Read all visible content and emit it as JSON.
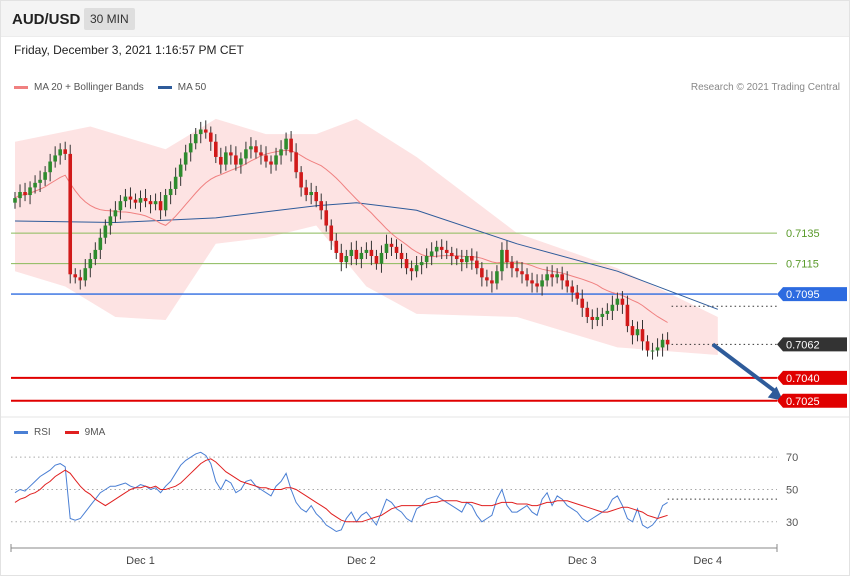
{
  "header": {
    "symbol": "AUD/USD",
    "timeframe": "30 MIN",
    "datetime": "Friday, December 3, 2021 1:16:57 PM CET"
  },
  "legend": {
    "main": [
      {
        "label": "MA 20 + Bollinger Bands",
        "color": "#f08080"
      },
      {
        "label": "MA 50",
        "color": "#2e5b9a"
      }
    ],
    "rsi": [
      {
        "label": "RSI",
        "color": "#4a7fd4"
      },
      {
        "label": "9MA",
        "color": "#e02020"
      }
    ]
  },
  "copyright": "Research © 2021 Trading Central",
  "chart_data": [
    {
      "type": "candlestick",
      "ylim": [
        0.7015,
        0.7225
      ],
      "x_ticks": [
        {
          "label": "Dec 1",
          "index": 25
        },
        {
          "label": "Dec 2",
          "index": 69
        },
        {
          "label": "Dec 3",
          "index": 113
        },
        {
          "label": "Dec 4",
          "index": 138
        }
      ],
      "closes": [
        0.7158,
        0.7162,
        0.716,
        0.7165,
        0.7168,
        0.717,
        0.7175,
        0.7182,
        0.7186,
        0.719,
        0.7187,
        0.7108,
        0.7106,
        0.7104,
        0.7112,
        0.7118,
        0.7124,
        0.7132,
        0.714,
        0.7146,
        0.715,
        0.7156,
        0.7159,
        0.7157,
        0.7155,
        0.7158,
        0.7156,
        0.7154,
        0.7156,
        0.715,
        0.716,
        0.7164,
        0.7172,
        0.718,
        0.7188,
        0.7194,
        0.72,
        0.7203,
        0.7201,
        0.7195,
        0.7185,
        0.718,
        0.7188,
        0.7186,
        0.718,
        0.7184,
        0.719,
        0.7192,
        0.7188,
        0.7186,
        0.7182,
        0.718,
        0.7186,
        0.719,
        0.7197,
        0.7188,
        0.7175,
        0.7165,
        0.716,
        0.7162,
        0.7156,
        0.715,
        0.714,
        0.713,
        0.7122,
        0.7116,
        0.712,
        0.7124,
        0.7118,
        0.7122,
        0.7124,
        0.712,
        0.7115,
        0.7122,
        0.7128,
        0.7126,
        0.7122,
        0.7118,
        0.7112,
        0.711,
        0.7114,
        0.7116,
        0.712,
        0.7123,
        0.7126,
        0.7124,
        0.7122,
        0.712,
        0.7118,
        0.7116,
        0.712,
        0.7117,
        0.7112,
        0.7106,
        0.7104,
        0.7102,
        0.711,
        0.7124,
        0.7116,
        0.7112,
        0.711,
        0.7108,
        0.7104,
        0.7102,
        0.71,
        0.7104,
        0.7108,
        0.7106,
        0.7108,
        0.7104,
        0.71,
        0.7096,
        0.7092,
        0.7086,
        0.708,
        0.7078,
        0.708,
        0.7082,
        0.7084,
        0.7088,
        0.7092,
        0.7088,
        0.7074,
        0.7068,
        0.7072,
        0.7064,
        0.7058,
        0.7058,
        0.706,
        0.7065,
        0.7062
      ],
      "ma50_points": [
        [
          0,
          0.7143
        ],
        [
          20,
          0.7142
        ],
        [
          40,
          0.7145
        ],
        [
          60,
          0.7153
        ],
        [
          68,
          0.7155
        ],
        [
          80,
          0.715
        ],
        [
          100,
          0.7128
        ],
        [
          120,
          0.711
        ],
        [
          140,
          0.7085
        ]
      ],
      "bollinger_upper": [
        [
          0,
          0.7195
        ],
        [
          15,
          0.7205
        ],
        [
          30,
          0.719
        ],
        [
          40,
          0.721
        ],
        [
          50,
          0.72
        ],
        [
          60,
          0.72
        ],
        [
          68,
          0.721
        ],
        [
          80,
          0.7185
        ],
        [
          100,
          0.7135
        ],
        [
          120,
          0.7112
        ],
        [
          140,
          0.708
        ]
      ],
      "bollinger_lower": [
        [
          0,
          0.711
        ],
        [
          10,
          0.71
        ],
        [
          20,
          0.708
        ],
        [
          30,
          0.7078
        ],
        [
          40,
          0.7128
        ],
        [
          50,
          0.7132
        ],
        [
          60,
          0.714
        ],
        [
          70,
          0.71
        ],
        [
          80,
          0.7082
        ],
        [
          100,
          0.708
        ],
        [
          120,
          0.706
        ],
        [
          140,
          0.7055
        ]
      ],
      "levels": [
        {
          "value": 0.7135,
          "label": "0.7135",
          "color": "#8aba5a",
          "style": "support-resistance"
        },
        {
          "value": 0.7115,
          "label": "0.7115",
          "color": "#8aba5a",
          "style": "support-resistance"
        },
        {
          "value": 0.7095,
          "label": "0.7095",
          "color": "#2d6be0",
          "style": "pivot"
        },
        {
          "value": 0.7062,
          "label": "0.7062",
          "color": "#333333",
          "style": "last-price"
        },
        {
          "value": 0.704,
          "label": "0.7040",
          "color": "#e00000",
          "style": "target"
        },
        {
          "value": 0.7025,
          "label": "0.7025",
          "color": "#e00000",
          "style": "target"
        }
      ],
      "arrow": {
        "from": [
          139,
          0.7062
        ],
        "to": [
          153,
          0.7025
        ],
        "color": "#2e5b9a"
      }
    },
    {
      "type": "line",
      "ylim": [
        15,
        80
      ],
      "levels": [
        {
          "value": 70,
          "label": "70"
        },
        {
          "value": 50,
          "label": "50"
        },
        {
          "value": 30,
          "label": "30"
        }
      ],
      "series": [
        {
          "name": "RSI",
          "color": "#4a7fd4",
          "values": [
            48,
            50,
            49,
            52,
            55,
            58,
            60,
            62,
            65,
            66,
            64,
            32,
            31,
            32,
            36,
            40,
            44,
            48,
            50,
            52,
            52,
            53,
            54,
            52,
            51,
            53,
            52,
            50,
            51,
            48,
            52,
            55,
            60,
            65,
            68,
            70,
            72,
            73,
            71,
            66,
            55,
            50,
            56,
            54,
            48,
            50,
            55,
            56,
            52,
            50,
            48,
            46,
            52,
            55,
            60,
            50,
            42,
            38,
            36,
            40,
            35,
            32,
            28,
            26,
            24,
            25,
            32,
            36,
            30,
            34,
            36,
            32,
            28,
            36,
            44,
            42,
            38,
            36,
            32,
            30,
            38,
            40,
            44,
            45,
            46,
            44,
            42,
            40,
            38,
            36,
            42,
            40,
            34,
            30,
            32,
            34,
            44,
            50,
            40,
            36,
            36,
            38,
            40,
            36,
            34,
            44,
            48,
            40,
            46,
            44,
            40,
            38,
            36,
            32,
            30,
            32,
            34,
            36,
            38,
            44,
            46,
            40,
            32,
            30,
            38,
            28,
            26,
            28,
            32,
            40,
            42
          ]
        },
        {
          "name": "9MA",
          "color": "#e02020",
          "values": [
            42,
            44,
            45,
            47,
            48,
            50,
            53,
            55,
            58,
            60,
            62,
            60,
            56,
            52,
            49,
            47,
            44,
            42,
            40,
            42,
            44,
            46,
            48,
            50,
            51,
            51,
            52,
            51,
            52,
            50,
            50,
            51,
            52,
            54,
            57,
            60,
            63,
            66,
            68,
            69,
            67,
            64,
            61,
            59,
            57,
            55,
            54,
            53,
            52,
            51,
            51,
            50,
            50,
            50,
            51,
            51,
            50,
            48,
            46,
            44,
            42,
            40,
            38,
            35,
            33,
            31,
            30,
            30,
            30,
            30,
            31,
            32,
            33,
            34,
            36,
            38,
            39,
            40,
            40,
            40,
            40,
            40,
            41,
            42,
            42,
            43,
            43,
            43,
            43,
            42,
            42,
            42,
            41,
            40,
            40,
            40,
            41,
            42,
            42,
            42,
            41,
            41,
            41,
            40,
            40,
            41,
            42,
            42,
            43,
            43,
            43,
            42,
            41,
            40,
            39,
            38,
            37,
            36,
            36,
            37,
            38,
            39,
            39,
            38,
            37,
            36,
            34,
            33,
            32,
            33,
            34
          ]
        }
      ]
    }
  ]
}
